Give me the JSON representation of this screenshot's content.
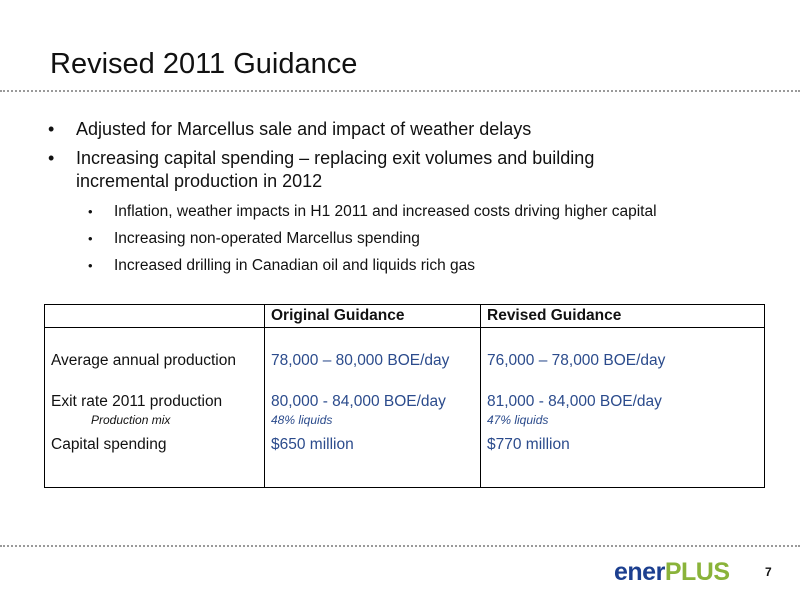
{
  "slide": {
    "title": "Revised 2011 Guidance",
    "page_number": "7"
  },
  "bullets": [
    {
      "level": 1,
      "text": "Adjusted for Marcellus sale and impact of weather delays"
    },
    {
      "level": 1,
      "text": "Increasing capital spending – replacing exit volumes and building incremental production in 2012"
    },
    {
      "level": 2,
      "text": "Inflation, weather impacts in H1 2011 and increased costs driving higher capital"
    },
    {
      "level": 2,
      "text": "Increasing non-operated Marcellus spending"
    },
    {
      "level": 2,
      "text": "Increased drilling in Canadian oil and liquids rich gas"
    }
  ],
  "table": {
    "headers": [
      "",
      "Original Guidance",
      "Revised Guidance"
    ],
    "rows": {
      "production": {
        "label": "Average annual production",
        "original": "78,000 – 80,000 BOE/day",
        "revised": "76,000 – 78,000 BOE/day"
      },
      "exit_rate": {
        "label": "Exit rate 2011 production",
        "original": "80,000 - 84,000 BOE/day",
        "revised": "81,000 - 84,000 BOE/day"
      },
      "mix": {
        "label": "Production mix",
        "original": "48% liquids",
        "revised": "47% liquids"
      },
      "capital": {
        "label": "Capital spending",
        "original": "$650 million",
        "revised": "$770 million"
      }
    }
  },
  "logo": {
    "part1": "ener",
    "part2": "PLUS"
  },
  "colors": {
    "value_text": "#2b4b8c",
    "logo_blue": "#1c3f8f",
    "logo_green": "#8ab33a"
  }
}
